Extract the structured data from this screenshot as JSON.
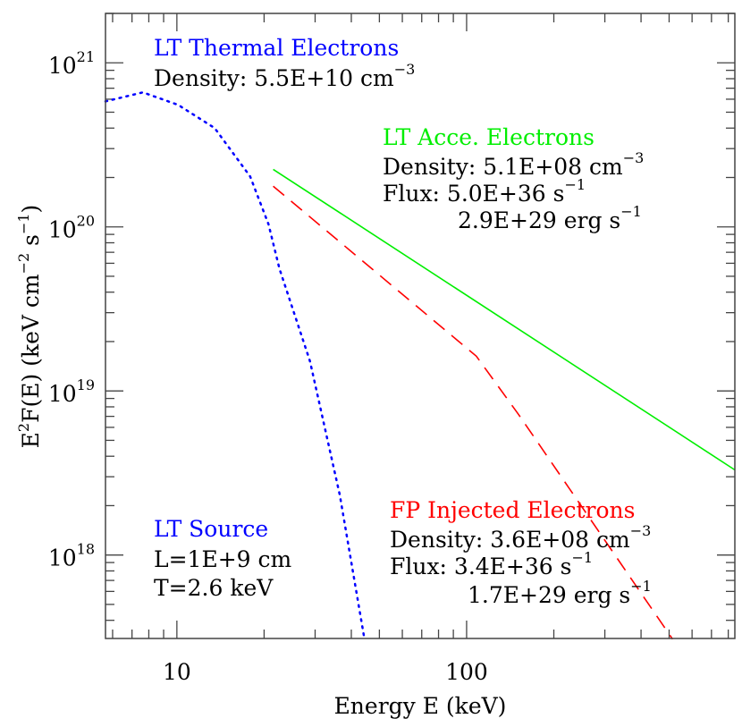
{
  "chart_data": {
    "type": "line",
    "xlabel": "Energy E (keV)",
    "ylabel": {
      "base": "E",
      "sup1": "2",
      "mid": "F(E) (keV cm",
      "sup2": "−2",
      "mid2": " s",
      "sup3": "−1",
      "end": ")"
    },
    "xscale": "log",
    "yscale": "log",
    "xlim": [
      5.67,
      843
    ],
    "ylim": [
      3.1e+17,
      2e+21
    ],
    "grid": false,
    "x_ticks": [
      {
        "value": 10,
        "label": "10"
      },
      {
        "value": 100,
        "label": "100"
      }
    ],
    "y_ticks": [
      {
        "value": 1e+21,
        "base": "10",
        "exp": "21"
      },
      {
        "value": 1e+20,
        "base": "10",
        "exp": "20"
      },
      {
        "value": 1e+19,
        "base": "10",
        "exp": "19"
      },
      {
        "value": 1e+18,
        "base": "10",
        "exp": "18"
      }
    ],
    "series": [
      {
        "name": "LT Thermal Electrons",
        "color": "#0000ff",
        "style": "dotted",
        "x": [
          5.67,
          7.63,
          10.1,
          13.5,
          17.9,
          20.7,
          22.6,
          28.8,
          36.5,
          44.4
        ],
        "y": [
          5.82e+20,
          6.6e+20,
          5.54e+20,
          4e+20,
          2.03e+20,
          1.04e+20,
          5.56e+19,
          1.52e+19,
          2.32e+18,
          3.07e+17
        ]
      },
      {
        "name": "LT Acce. Electrons",
        "color": "#00ee00",
        "style": "solid",
        "x": [
          21.5,
          843
        ],
        "y": [
          2.24e+20,
          3.3e+18
        ]
      },
      {
        "name": "FP Injected Electrons",
        "color": "#ff0000",
        "style": "dashed",
        "x": [
          21.5,
          108,
          151,
          514
        ],
        "y": [
          1.77e+20,
          1.63e+19,
          7.2e+18,
          3.07e+17
        ]
      }
    ],
    "annotations": {
      "thermal": {
        "title": "LT Thermal Electrons",
        "color": "#0000ff",
        "density": {
          "text": "Density: 5.5E+10 cm",
          "sup": "−3"
        }
      },
      "acce": {
        "title": "LT Acce. Electrons",
        "color": "#00ee00",
        "density": {
          "text": "Density: 5.1E+08 cm",
          "sup": "−3"
        },
        "flux": {
          "text": "Flux: 5.0E+36 s",
          "sup": "−1"
        },
        "energy": {
          "text": "2.9E+29 erg s",
          "sup": "−1"
        }
      },
      "source": {
        "title": "LT Source",
        "color": "#0000ff",
        "length": "L=1E+9 cm",
        "temperature": "T=2.6 keV"
      },
      "fp": {
        "title": "FP Injected Electrons",
        "color": "#ff0000",
        "density": {
          "text": "Density: 3.6E+08 cm",
          "sup": "−3"
        },
        "flux": {
          "text": "Flux: 3.4E+36 s",
          "sup": "−1"
        },
        "energy": {
          "text": "1.7E+29 erg s",
          "sup": "−1"
        }
      }
    }
  }
}
